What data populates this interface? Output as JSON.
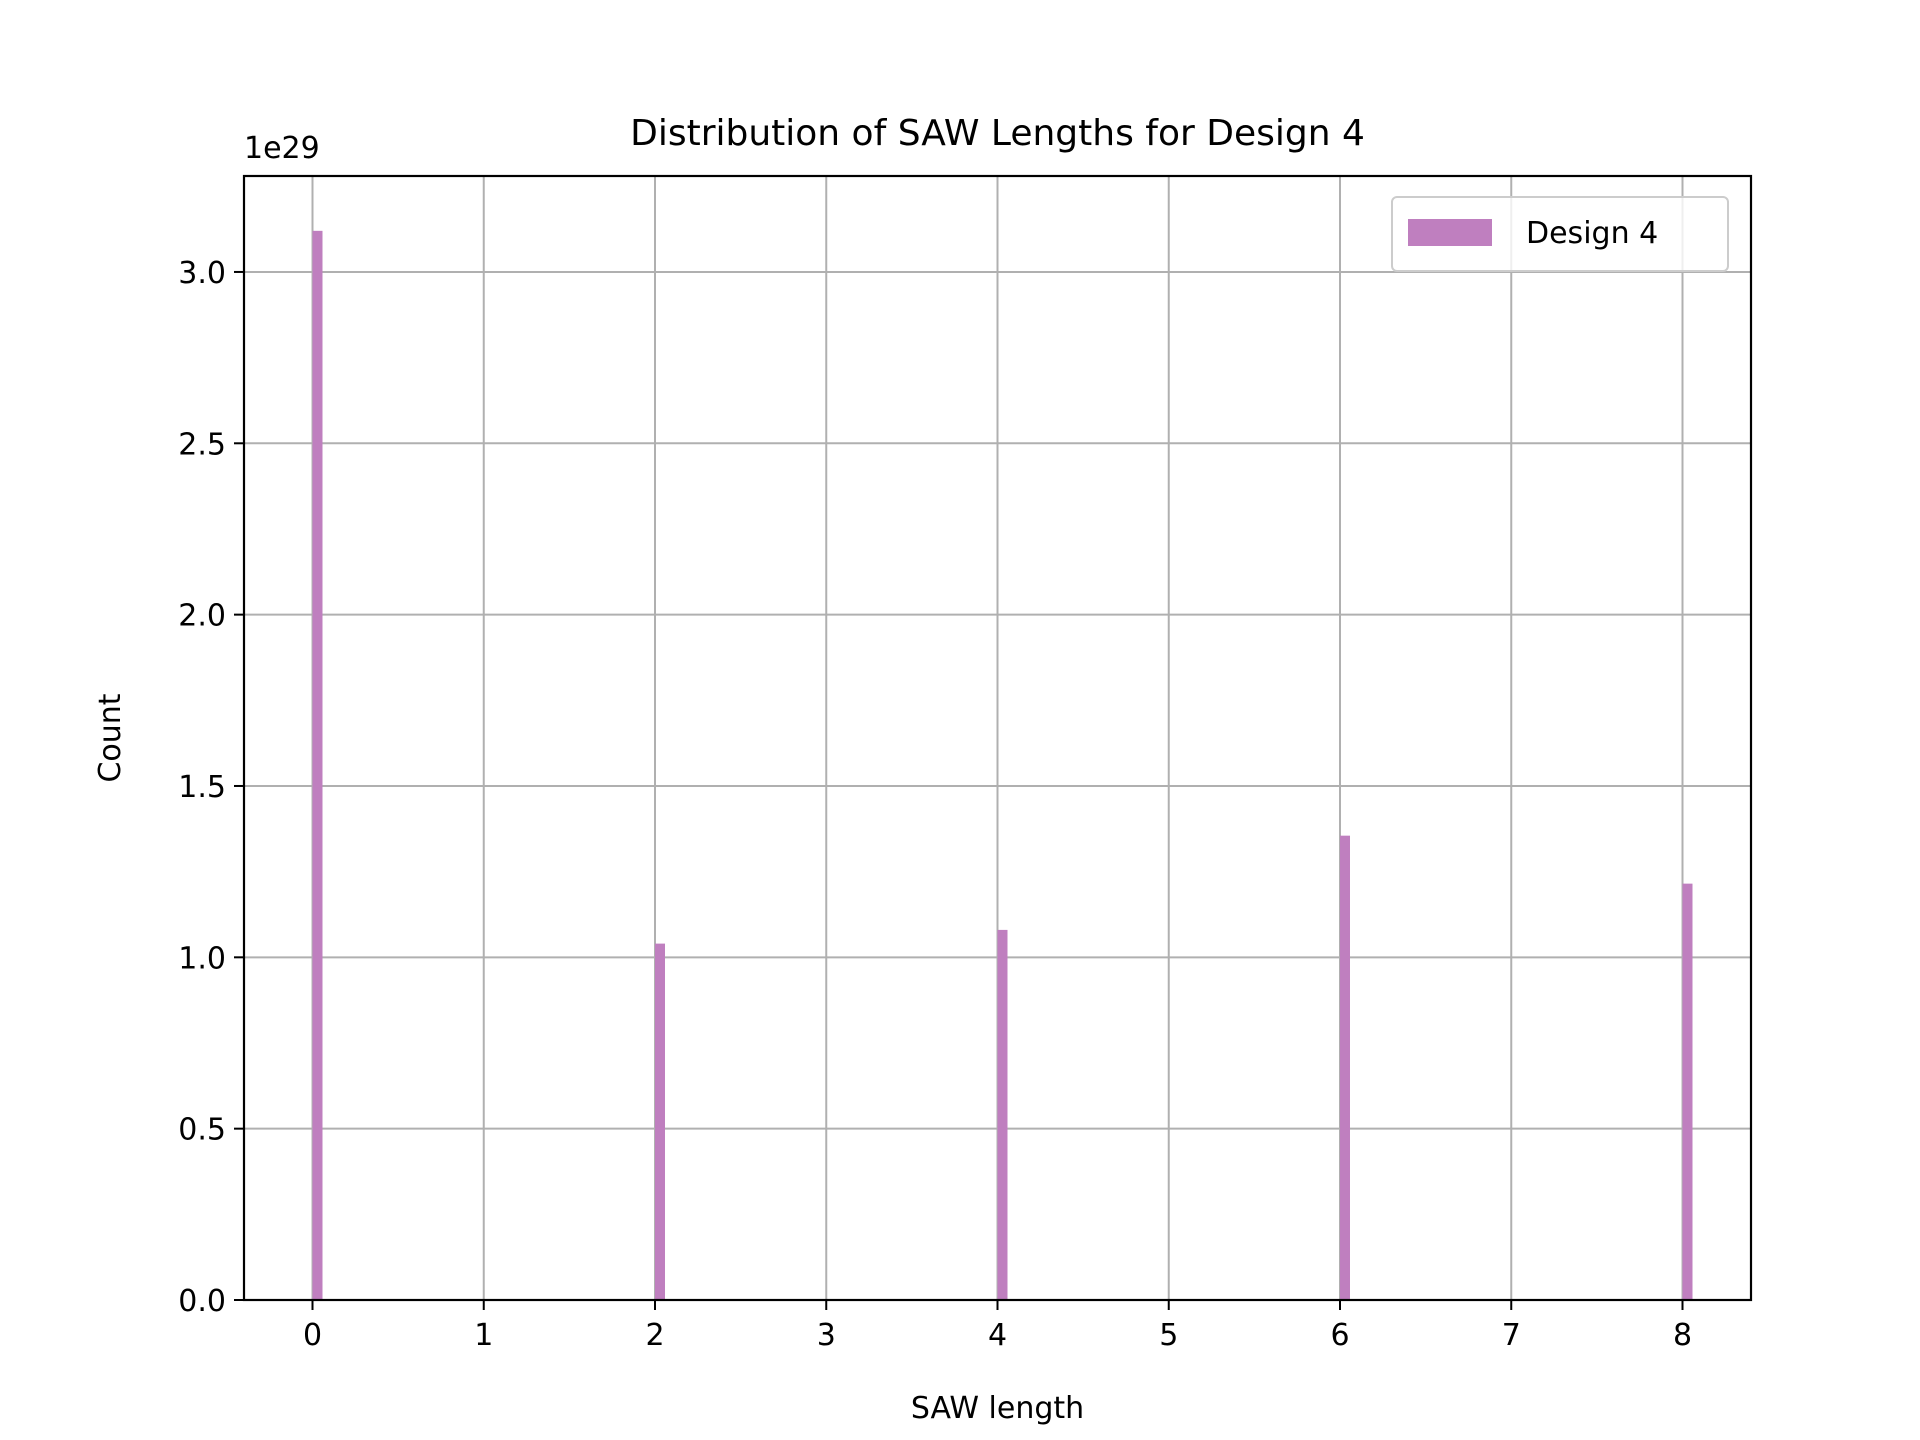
{
  "chart_data": {
    "type": "bar",
    "title": "Distribution of SAW Lengths for Design 4",
    "xlabel": "SAW length",
    "ylabel": "Count",
    "offset_text": "1e29",
    "xlim": [
      -0.4,
      8.4
    ],
    "ylim": [
      0,
      3.28
    ],
    "y_multiplier": 1e+29,
    "xticks": [
      0,
      1,
      2,
      3,
      4,
      5,
      6,
      7,
      8
    ],
    "yticks": [
      "0.0",
      "0.5",
      "1.0",
      "1.5",
      "2.0",
      "2.5",
      "3.0"
    ],
    "grid": true,
    "legend": {
      "placement": "top-right",
      "entries": [
        "Design 4"
      ]
    },
    "series": [
      {
        "name": "Design 4",
        "color": "#bf7fbf",
        "x": [
          0,
          2,
          4,
          6,
          8
        ],
        "values": [
          3.12,
          1.04,
          1.08,
          1.355,
          1.215
        ]
      }
    ]
  }
}
